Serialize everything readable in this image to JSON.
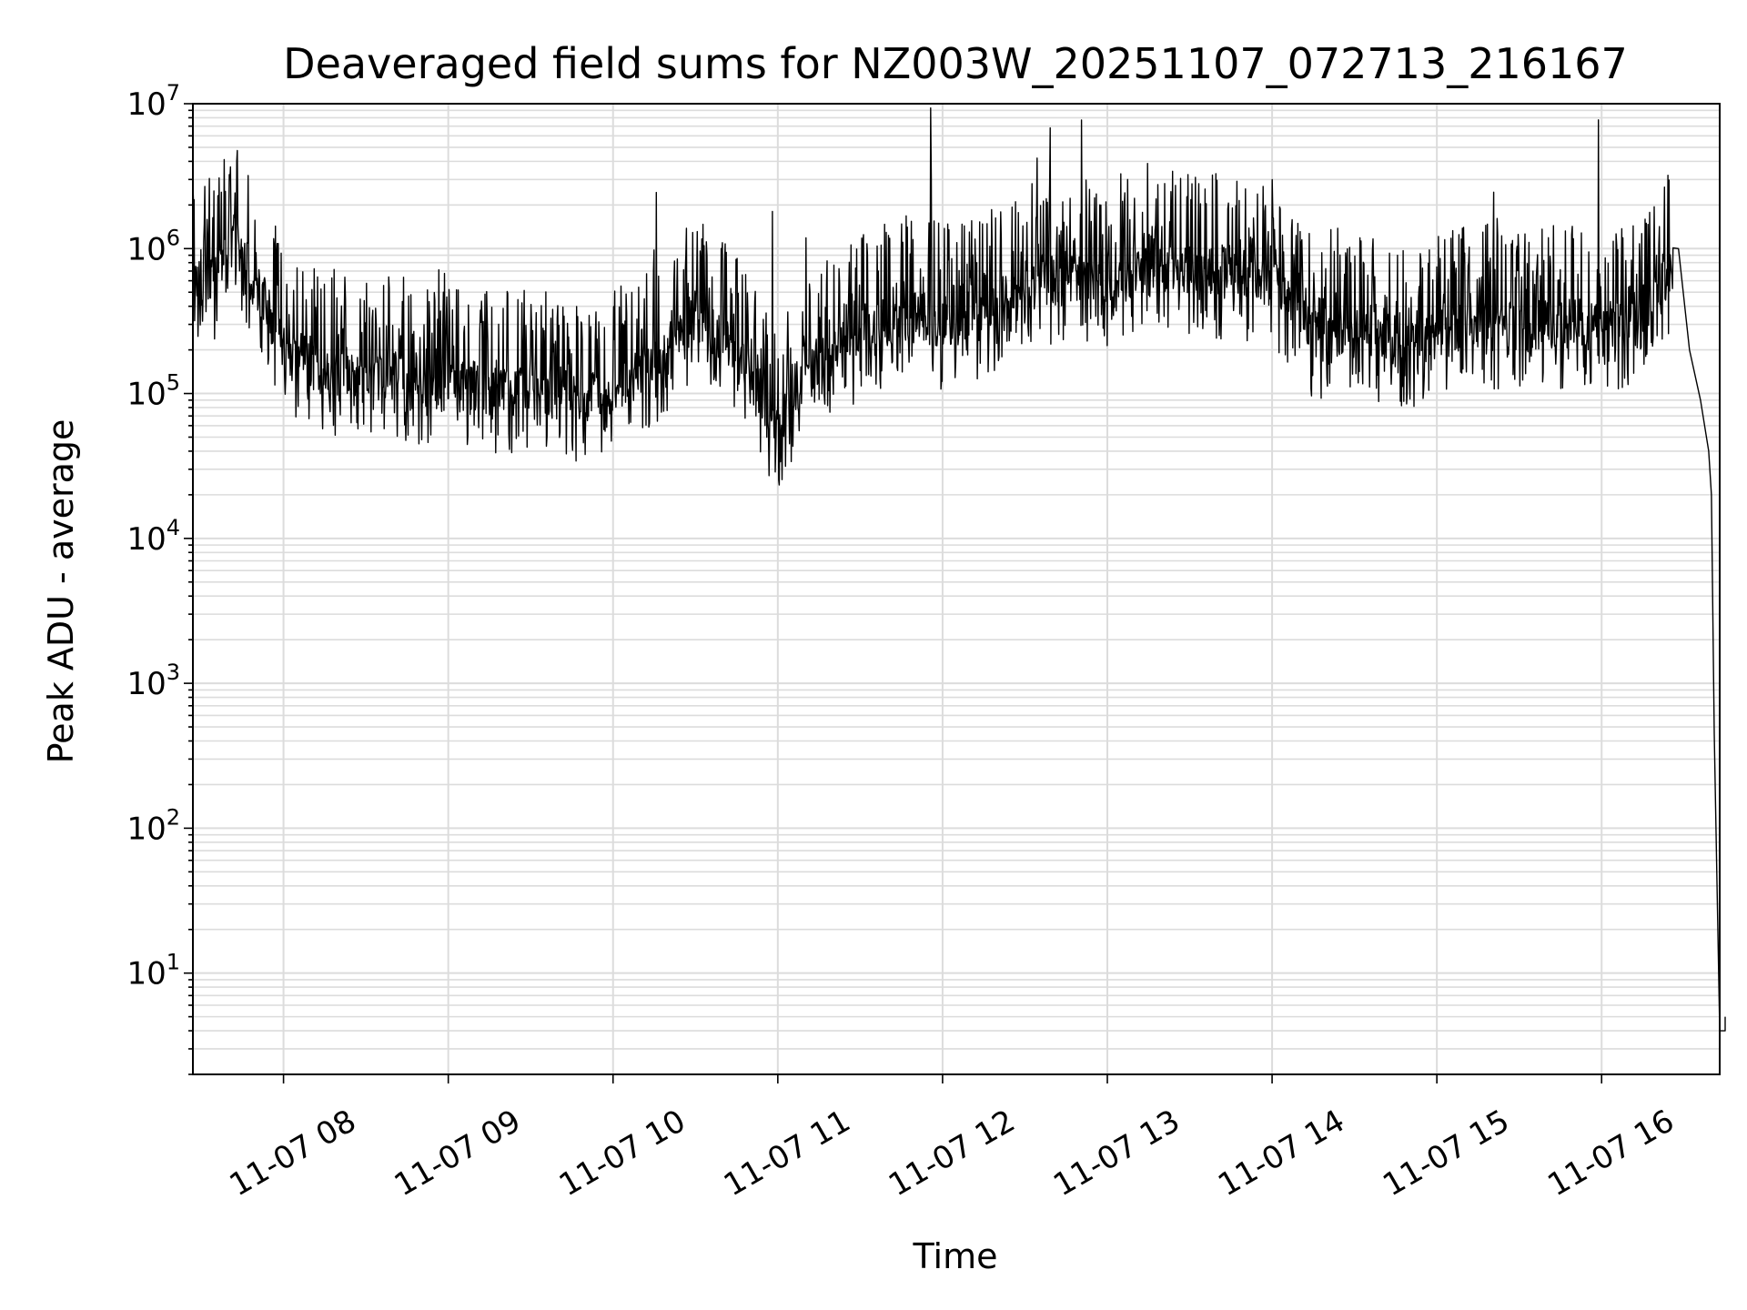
{
  "chart_data": {
    "type": "line",
    "title": "Deaveraged field sums for NZ003W_20251107_072713_216167",
    "xlabel": "Time",
    "ylabel": "Peak ADU - average",
    "yscale": "log",
    "ylim": [
      2,
      10000000
    ],
    "xlim": [
      "2025-11-07 07:27:00",
      "2025-11-07 16:43:00"
    ],
    "x_ticks": [
      "11-07 08",
      "11-07 09",
      "11-07 10",
      "11-07 11",
      "11-07 12",
      "11-07 13",
      "11-07 14",
      "11-07 15",
      "11-07 16"
    ],
    "y_ticks": [
      {
        "value": 10,
        "base": "10",
        "exp": "1"
      },
      {
        "value": 100,
        "base": "10",
        "exp": "2"
      },
      {
        "value": 1000,
        "base": "10",
        "exp": "3"
      },
      {
        "value": 10000,
        "base": "10",
        "exp": "4"
      },
      {
        "value": 100000,
        "base": "10",
        "exp": "5"
      },
      {
        "value": 1000000,
        "base": "10",
        "exp": "6"
      },
      {
        "value": 10000000,
        "base": "10",
        "exp": "7"
      }
    ],
    "grid": true,
    "line_color": "#000000",
    "series": [
      {
        "x": [
          "2025-11-07 07:27",
          "2025-11-07 07:35",
          "2025-11-07 07:42",
          "2025-11-07 07:50",
          "2025-11-07 08:00",
          "2025-11-07 08:15",
          "2025-11-07 08:30",
          "2025-11-07 08:45",
          "2025-11-07 09:00",
          "2025-11-07 09:15",
          "2025-11-07 09:30",
          "2025-11-07 09:45",
          "2025-11-07 10:00",
          "2025-11-07 10:15",
          "2025-11-07 10:30",
          "2025-11-07 10:45",
          "2025-11-07 11:00",
          "2025-11-07 11:15",
          "2025-11-07 11:30",
          "2025-11-07 11:45",
          "2025-11-07 12:00",
          "2025-11-07 12:15",
          "2025-11-07 12:30",
          "2025-11-07 12:45",
          "2025-11-07 13:00",
          "2025-11-07 13:15",
          "2025-11-07 13:30",
          "2025-11-07 13:45",
          "2025-11-07 14:00",
          "2025-11-07 14:15",
          "2025-11-07 14:30",
          "2025-11-07 14:45",
          "2025-11-07 15:00",
          "2025-11-07 15:15",
          "2025-11-07 15:30",
          "2025-11-07 15:45",
          "2025-11-07 16:00",
          "2025-11-07 16:15",
          "2025-11-07 16:26",
          "2025-11-07 16:28",
          "2025-11-07 16:32",
          "2025-11-07 16:36",
          "2025-11-07 16:39",
          "2025-11-07 16:40",
          "2025-11-07 16:41",
          "2025-11-07 16:43"
        ],
        "values": [
          650000,
          600000,
          1200000,
          550000,
          220000,
          130000,
          150000,
          130000,
          110000,
          100000,
          110000,
          90000,
          100000,
          170000,
          350000,
          180000,
          60000,
          170000,
          250000,
          350000,
          300000,
          350000,
          550000,
          650000,
          600000,
          800000,
          700000,
          650000,
          600000,
          250000,
          300000,
          200000,
          250000,
          300000,
          280000,
          300000,
          300000,
          300000,
          800000,
          1000000,
          200000,
          90000,
          40000,
          20000,
          450,
          4
        ]
      }
    ]
  }
}
